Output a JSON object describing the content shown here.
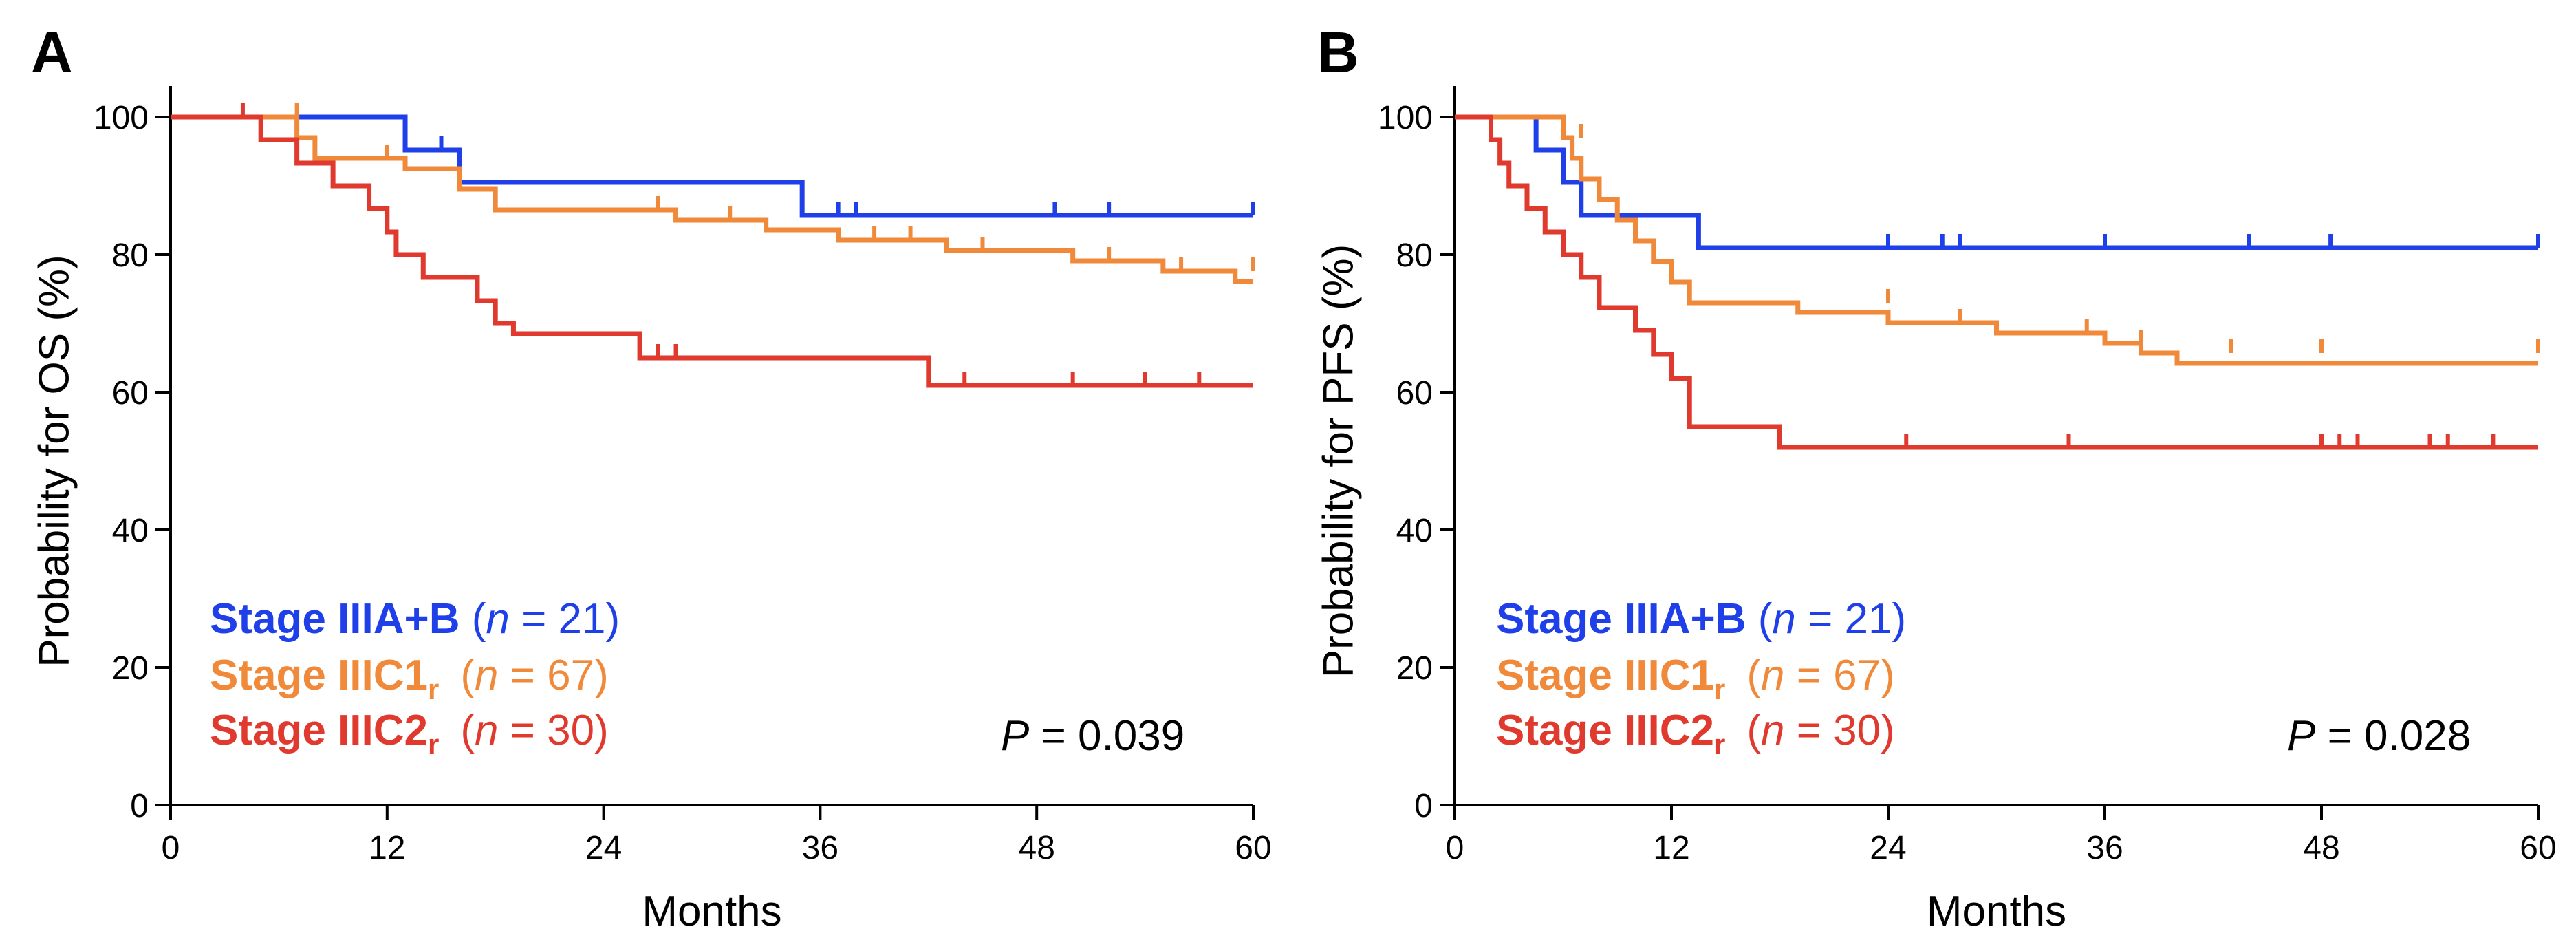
{
  "chart_data": [
    {
      "type": "line",
      "subtype": "kaplan-meier step",
      "panel_label": "A",
      "xlabel": "Months",
      "ylabel": "Probability for OS (%)",
      "xlim": [
        0,
        60
      ],
      "ylim": [
        0,
        100
      ],
      "xticks": [
        "0",
        "12",
        "24",
        "36",
        "48",
        "60"
      ],
      "yticks": [
        "0",
        "20",
        "40",
        "60",
        "80",
        "100"
      ],
      "grid": false,
      "legend_position": "bottom-left",
      "p_value": {
        "symbol": "P",
        "text": " = 0.039"
      },
      "series": [
        {
          "name": "Stage IIIA+B",
          "n_text": "21",
          "color": "#1f3fe8",
          "steps": [
            [
              0,
              100
            ],
            [
              13,
              95.2
            ],
            [
              16,
              90.5
            ],
            [
              35,
              85.7
            ],
            [
              60,
              85.7
            ]
          ],
          "censors": [
            [
              15,
              95.2
            ],
            [
              37,
              85.7
            ],
            [
              38,
              85.7
            ],
            [
              49,
              85.7
            ],
            [
              52,
              85.7
            ],
            [
              60,
              85.7
            ]
          ]
        },
        {
          "name": "Stage IIIC1",
          "subscript": "r",
          "n_text": "67",
          "color": "#f08a3a",
          "steps": [
            [
              0,
              100
            ],
            [
              7,
              97
            ],
            [
              8,
              94
            ],
            [
              13,
              92.5
            ],
            [
              16,
              89.5
            ],
            [
              18,
              86.5
            ],
            [
              28,
              85
            ],
            [
              33,
              83.6
            ],
            [
              37,
              82.1
            ],
            [
              43,
              80.6
            ],
            [
              50,
              79.1
            ],
            [
              55,
              77.6
            ],
            [
              59,
              76.1
            ],
            [
              60,
              76.1
            ]
          ],
          "censors": [
            [
              7,
              100
            ],
            [
              12,
              94
            ],
            [
              27,
              86.5
            ],
            [
              31,
              85
            ],
            [
              39,
              82.1
            ],
            [
              41,
              82.1
            ],
            [
              45,
              80.6
            ],
            [
              52,
              79.1
            ],
            [
              56,
              77.6
            ],
            [
              60,
              77.6
            ]
          ]
        },
        {
          "name": "Stage IIIC2",
          "subscript": "r",
          "n_text": "30",
          "color": "#e0392e",
          "steps": [
            [
              0,
              100
            ],
            [
              5,
              96.7
            ],
            [
              7,
              93.3
            ],
            [
              9,
              90
            ],
            [
              11,
              86.7
            ],
            [
              12,
              83.3
            ],
            [
              12.5,
              80
            ],
            [
              14,
              76.7
            ],
            [
              17,
              73.3
            ],
            [
              18,
              70
            ],
            [
              19,
              68.5
            ],
            [
              26,
              65
            ],
            [
              42,
              61
            ],
            [
              60,
              61
            ]
          ],
          "censors": [
            [
              4,
              100
            ],
            [
              27,
              65
            ],
            [
              28,
              65
            ],
            [
              44,
              61
            ],
            [
              50,
              61
            ],
            [
              54,
              61
            ],
            [
              57,
              61
            ]
          ]
        }
      ]
    },
    {
      "type": "line",
      "subtype": "kaplan-meier step",
      "panel_label": "B",
      "xlabel": "Months",
      "ylabel": "Probability for PFS (%)",
      "xlim": [
        0,
        60
      ],
      "ylim": [
        0,
        100
      ],
      "xticks": [
        "0",
        "12",
        "24",
        "36",
        "48",
        "60"
      ],
      "yticks": [
        "0",
        "20",
        "40",
        "60",
        "80",
        "100"
      ],
      "grid": false,
      "legend_position": "bottom-left",
      "p_value": {
        "symbol": "P",
        "text": " = 0.028"
      },
      "series": [
        {
          "name": "Stage IIIA+B",
          "n_text": "21",
          "color": "#1f3fe8",
          "steps": [
            [
              0,
              100
            ],
            [
              4.5,
              95.2
            ],
            [
              6,
              90.5
            ],
            [
              7,
              85.7
            ],
            [
              13.5,
              81
            ],
            [
              60,
              81
            ]
          ],
          "censors": [
            [
              24,
              81
            ],
            [
              27,
              81
            ],
            [
              28,
              81
            ],
            [
              36,
              81
            ],
            [
              44,
              81
            ],
            [
              48.5,
              81
            ],
            [
              60,
              81
            ]
          ]
        },
        {
          "name": "Stage IIIC1",
          "subscript": "r",
          "n_text": "67",
          "color": "#f08a3a",
          "steps": [
            [
              0,
              100
            ],
            [
              6,
              97
            ],
            [
              6.5,
              94
            ],
            [
              7,
              91
            ],
            [
              8,
              88
            ],
            [
              9,
              85
            ],
            [
              10,
              82
            ],
            [
              11,
              79
            ],
            [
              12,
              76
            ],
            [
              13,
              73
            ],
            [
              19,
              71.6
            ],
            [
              24,
              70.1
            ],
            [
              30,
              68.6
            ],
            [
              36,
              67.1
            ],
            [
              38,
              65.7
            ],
            [
              40,
              64.2
            ],
            [
              60,
              64.2
            ]
          ],
          "censors": [
            [
              7,
              97
            ],
            [
              24,
              73
            ],
            [
              28,
              70.1
            ],
            [
              35,
              68.6
            ],
            [
              38,
              67.1
            ],
            [
              43,
              65.7
            ],
            [
              48,
              65.7
            ],
            [
              60,
              65.7
            ]
          ]
        },
        {
          "name": "Stage IIIC2",
          "subscript": "r",
          "n_text": "30",
          "color": "#e0392e",
          "steps": [
            [
              0,
              100
            ],
            [
              2,
              96.7
            ],
            [
              2.5,
              93.3
            ],
            [
              3,
              90
            ],
            [
              4,
              86.7
            ],
            [
              5,
              83.3
            ],
            [
              6,
              80
            ],
            [
              7,
              76.7
            ],
            [
              8,
              72.3
            ],
            [
              10,
              69
            ],
            [
              11,
              65.5
            ],
            [
              12,
              62
            ],
            [
              13,
              55
            ],
            [
              18,
              52
            ],
            [
              60,
              52
            ]
          ],
          "censors": [
            [
              25,
              52
            ],
            [
              34,
              52
            ],
            [
              48,
              52
            ],
            [
              49,
              52
            ],
            [
              50,
              52
            ],
            [
              54,
              52
            ],
            [
              55,
              52
            ],
            [
              57.5,
              52
            ]
          ]
        }
      ]
    }
  ]
}
